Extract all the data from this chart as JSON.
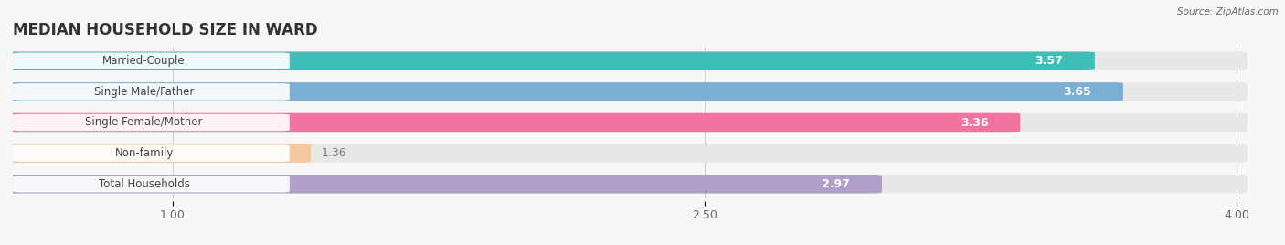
{
  "title": "MEDIAN HOUSEHOLD SIZE IN WARD",
  "source": "Source: ZipAtlas.com",
  "categories": [
    "Married-Couple",
    "Single Male/Father",
    "Single Female/Mother",
    "Non-family",
    "Total Households"
  ],
  "values": [
    3.57,
    3.65,
    3.36,
    1.36,
    2.97
  ],
  "bar_colors": [
    "#3dbfb8",
    "#7bafd4",
    "#f272a0",
    "#f5c9a0",
    "#b09fc8"
  ],
  "bar_bg_color": "#e8e8e8",
  "xlim_min": 0.55,
  "xlim_max": 4.1,
  "xdata_min": 0.55,
  "xdata_max": 4.0,
  "xticks": [
    1.0,
    2.5,
    4.0
  ],
  "xtick_labels": [
    "1.00",
    "2.50",
    "4.00"
  ],
  "background_color": "#f7f7f7",
  "title_fontsize": 12,
  "bar_height": 0.55,
  "bar_gap": 0.2,
  "label_bg": "#ffffff",
  "value_outside_color": "#777777",
  "value_inside_color": "#ffffff"
}
